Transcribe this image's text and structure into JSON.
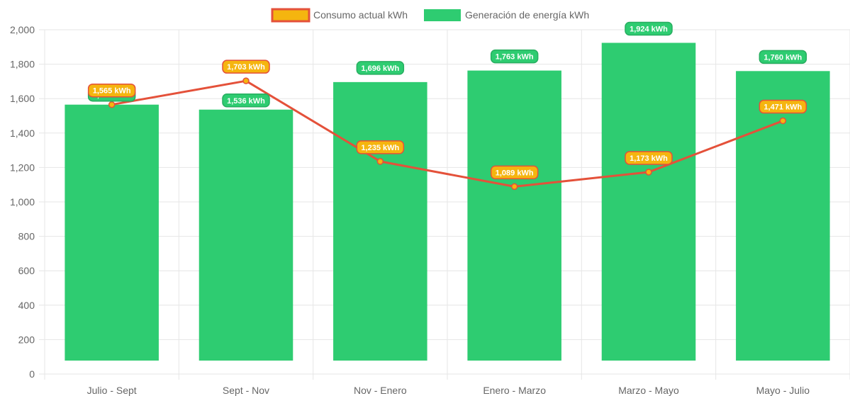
{
  "chart_data": {
    "type": "bar",
    "categories": [
      "Julio - Sept",
      "Sept - Nov",
      "Nov - Enero",
      "Enero - Marzo",
      "Marzo - Mayo",
      "Mayo - Julio"
    ],
    "series": [
      {
        "name": "Consumo actual kWh",
        "kind": "line",
        "values": [
          1565,
          1703,
          1235,
          1089,
          1173,
          1471
        ],
        "labels": [
          "1,565 kWh",
          "1,703 kWh",
          "1,235 kWh",
          "1,089 kWh",
          "1,173 kWh",
          "1,471 kWh"
        ],
        "color": "#e4513a",
        "point_color": "#f5b50f"
      },
      {
        "name": "Generación de energía kWh",
        "kind": "bar",
        "values": [
          1565,
          1536,
          1696,
          1763,
          1924,
          1760
        ],
        "labels": [
          "1,565 kWh",
          "1,536 kWh",
          "1,696 kWh",
          "1,763 kWh",
          "1,924 kWh",
          "1,760 kWh"
        ],
        "color": "#2ecc71"
      }
    ],
    "title": "",
    "xlabel": "",
    "ylabel": "",
    "ylim": [
      0,
      2000
    ],
    "yticks": [
      "0",
      "200",
      "400",
      "600",
      "800",
      "1,000",
      "1,200",
      "1,400",
      "1,600",
      "1,800",
      "2,000"
    ],
    "ytick_values": [
      0,
      200,
      400,
      600,
      800,
      1000,
      1200,
      1400,
      1600,
      1800,
      2000
    ],
    "grid": true,
    "legend": "top-center"
  }
}
